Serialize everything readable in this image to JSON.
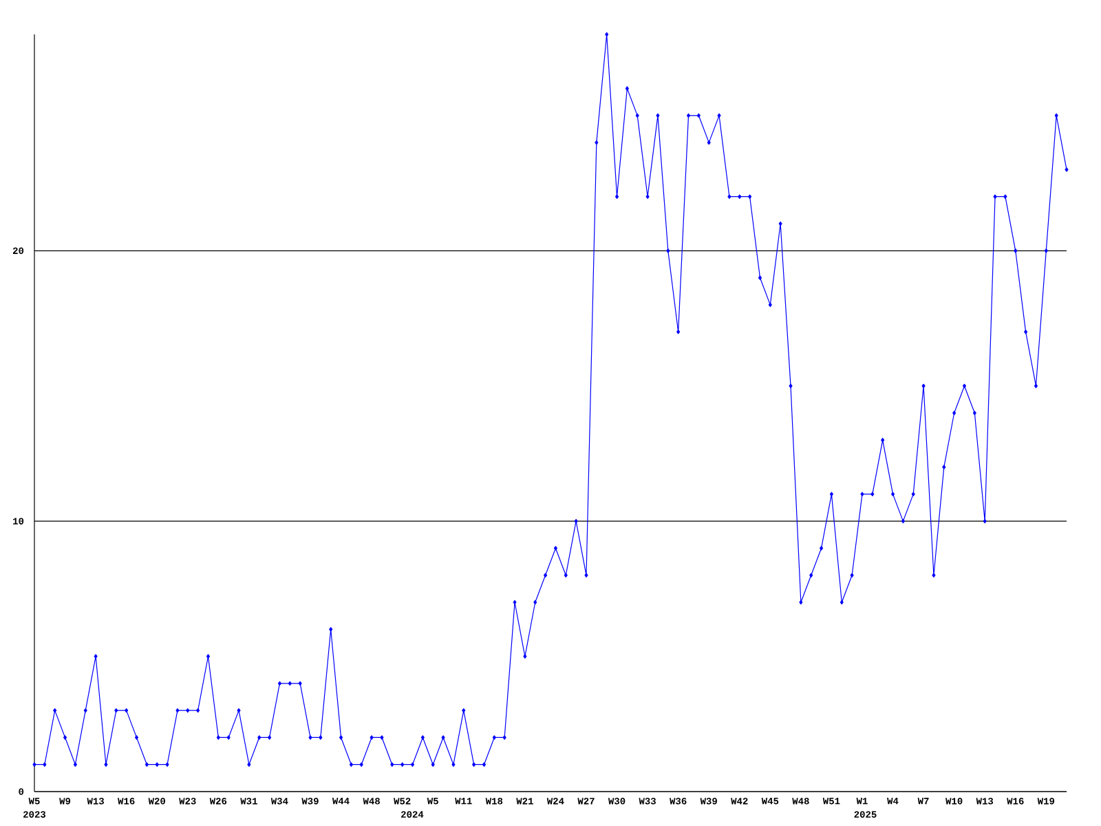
{
  "chart_data": {
    "type": "line",
    "color": "#0000ff",
    "marker": "diamond",
    "grid": "y",
    "ylim": [
      0,
      28
    ],
    "yticks": [
      0,
      10,
      20
    ],
    "categories": [
      "W5",
      null,
      null,
      "W9",
      null,
      null,
      "W13",
      null,
      null,
      "W16",
      null,
      null,
      "W20",
      null,
      null,
      "W23",
      null,
      null,
      "W26",
      null,
      null,
      "W31",
      null,
      null,
      "W34",
      null,
      null,
      "W39",
      null,
      null,
      "W44",
      null,
      null,
      "W48",
      null,
      null,
      "W52",
      null,
      null,
      "W5",
      null,
      null,
      "W11",
      null,
      null,
      "W18",
      null,
      null,
      "W21",
      null,
      null,
      "W24",
      null,
      null,
      "W27",
      null,
      null,
      "W30",
      null,
      null,
      "W33",
      null,
      null,
      "W36",
      null,
      null,
      "W39",
      null,
      null,
      "W42",
      null,
      null,
      "W45",
      null,
      null,
      "W48",
      null,
      null,
      "W51",
      null,
      null,
      "W1",
      null,
      null,
      "W4",
      null,
      null,
      "W7",
      null,
      null,
      "W10",
      null,
      null,
      "W13",
      null,
      null,
      "W16",
      null,
      null,
      "W19",
      null,
      null
    ],
    "values": [
      1,
      1,
      3,
      2,
      1,
      3,
      5,
      1,
      3,
      3,
      2,
      1,
      1,
      1,
      3,
      3,
      3,
      5,
      2,
      2,
      3,
      1,
      2,
      2,
      4,
      4,
      4,
      2,
      2,
      6,
      2,
      1,
      1,
      2,
      2,
      1,
      1,
      1,
      2,
      1,
      2,
      1,
      3,
      1,
      1,
      2,
      2,
      7,
      5,
      7,
      8,
      9,
      8,
      10,
      8,
      24,
      28,
      22,
      26,
      25,
      22,
      25,
      20,
      17,
      25,
      25,
      24,
      25,
      22,
      22,
      22,
      19,
      18,
      21,
      15,
      7,
      8,
      9,
      11,
      7,
      8,
      11,
      11,
      13,
      11,
      10,
      11,
      15,
      8,
      12,
      14,
      15,
      14,
      10,
      22,
      22,
      20,
      17,
      15,
      20,
      25,
      23
    ],
    "annotations": [
      "2023",
      "2024",
      "2025"
    ]
  }
}
